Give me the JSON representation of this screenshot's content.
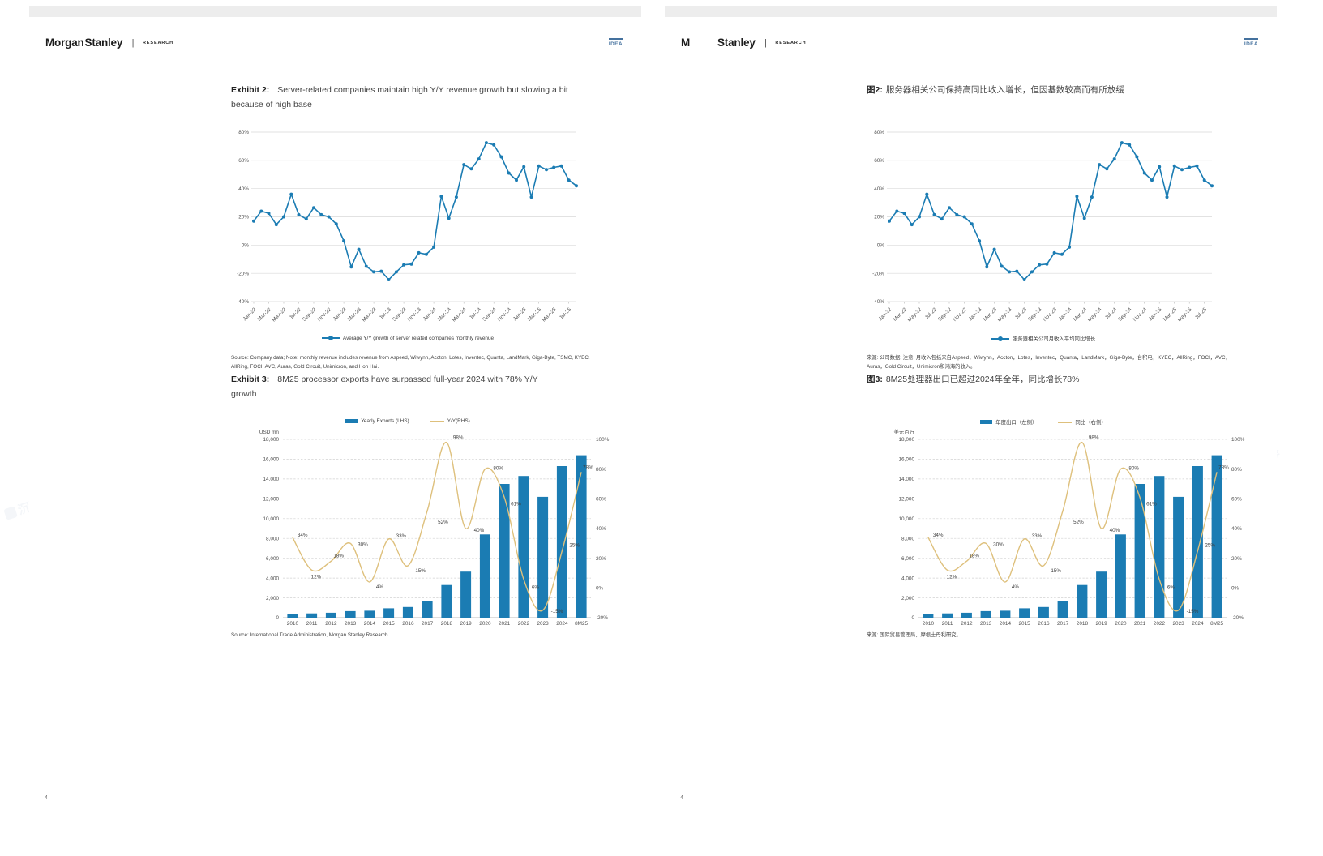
{
  "watermark": {
    "text": "沉浸式翻译"
  },
  "colors": {
    "chart_blue": "#1b7cb3",
    "yy_line_tan": "#dec07c",
    "idea_blue": "#44719e"
  },
  "pages": [
    {
      "lang": "en",
      "brand": {
        "part1": "Morgan",
        "part2": "Stanley",
        "divider": "|",
        "research": "RESEARCH"
      },
      "idea": "IDEA",
      "page_number": "4",
      "exhibit2": {
        "label": "Exhibit 2:",
        "title": "Server-related companies maintain high Y/Y revenue growth but slowing a bit because of high base",
        "legend": "Average Y/Y growth of server related companies monthly revenue",
        "source": "Source: Company data; Note: monthly revenue includes revenue from Aspeed, Wiwynn, Accton, Lotes, Inventec, Quanta, LandMark, Giga-Byte, TSMC, KYEC, AllRing, FOCI, AVC, Auras, Gold Circuit, Unimicron, and Hon Hai."
      },
      "exhibit3": {
        "label": "Exhibit 3:",
        "title": "8M25 processor exports have surpassed full-year 2024 with 78% Y/Y growth",
        "legend_bar": "Yearly Exports (LHS)",
        "legend_line": "Y/Y(RHS)",
        "axis_label": "USD mn",
        "source": "Source: International Trade Administration, Morgan Stanley Research."
      }
    },
    {
      "lang": "zh",
      "brand": {
        "part1": "M",
        "part2": "Stanley",
        "divider": "|",
        "research": "RESEARCH"
      },
      "idea": "IDEA",
      "page_number": "4",
      "exhibit2": {
        "label": "图2:",
        "title": "服务器相关公司保持高同比收入增长，但因基数较高而有所放缓",
        "legend": "服务器相关公司月收入平均同比增长",
        "source": "来源: 公司数据; 注意: 月收入包括来自Aspeed，Wiwynn，Accton，Lotes，Inventec，Quanta，LandMark，Giga-Byte，台积电，KYEC，AllRing，FOCI，AVC，Auras，Gold Circuit，Unimicron和鸿海的收入。"
      },
      "exhibit3": {
        "label": "图3:",
        "title": "8M25处理器出口已超过2024年全年，同比增长78%",
        "legend_bar": "年度出口（左侧）",
        "legend_line": "同比（右侧）",
        "axis_label": "美元百万",
        "source": "来源: 国际贸易管理局，摩根士丹利研究。"
      }
    }
  ],
  "chart_data": [
    {
      "type": "line",
      "title": "Average Y/Y growth of server related companies monthly revenue",
      "x": [
        "Jan-22",
        "Feb-22",
        "Mar-22",
        "Apr-22",
        "May-22",
        "Jun-22",
        "Jul-22",
        "Aug-22",
        "Sep-22",
        "Oct-22",
        "Nov-22",
        "Dec-22",
        "Jan-23",
        "Feb-23",
        "Mar-23",
        "Apr-23",
        "May-23",
        "Jun-23",
        "Jul-23",
        "Aug-23",
        "Sep-23",
        "Oct-23",
        "Nov-23",
        "Dec-23",
        "Jan-24",
        "Feb-24",
        "Mar-24",
        "Apr-24",
        "May-24",
        "Jun-24",
        "Jul-24",
        "Aug-24",
        "Sep-24",
        "Oct-24",
        "Nov-24",
        "Dec-24",
        "Jan-25",
        "Feb-25",
        "Mar-25",
        "Apr-25",
        "May-25",
        "Jun-25",
        "Jul-25",
        "Aug-25"
      ],
      "values": [
        17,
        24,
        22.5,
        14.5,
        20,
        36,
        21.5,
        18.5,
        26.5,
        21.5,
        20,
        15,
        3,
        -15.5,
        -3,
        -15,
        -19,
        -18.5,
        -24.5,
        -19,
        -14,
        -13.5,
        -5.5,
        -6.5,
        -1.5,
        34.5,
        19,
        34,
        57,
        54,
        61,
        72.5,
        71,
        62.5,
        51,
        46,
        55.5,
        34,
        56,
        53.5,
        55,
        56,
        46,
        42
      ],
      "ylim": [
        -40,
        80
      ],
      "yticks": [
        -40,
        -20,
        0,
        20,
        40,
        60,
        80
      ],
      "ytick_format": "percent",
      "xticks_shown_every": 2,
      "grid": true,
      "legend_position": "bottom",
      "color": "#1b7cb3"
    },
    {
      "type": "bar+line",
      "title": "8M25 processor exports vs full-year history",
      "categories": [
        "2010",
        "2011",
        "2012",
        "2013",
        "2014",
        "2015",
        "2016",
        "2017",
        "2018",
        "2019",
        "2020",
        "2021",
        "2022",
        "2023",
        "2024",
        "8M25"
      ],
      "series": [
        {
          "name": "Yearly Exports (LHS)",
          "type": "bar",
          "axis": "left",
          "color": "#1b7cb3",
          "values": [
            380,
            430,
            500,
            660,
            700,
            950,
            1080,
            1650,
            3300,
            4650,
            8400,
            13500,
            14300,
            12200,
            15300,
            16400
          ]
        },
        {
          "name": "Y/Y (RHS)",
          "type": "line",
          "axis": "right",
          "color": "#dec07c",
          "values": [
            34,
            12,
            18,
            30,
            4,
            33,
            15,
            52,
            98,
            40,
            80,
            61,
            6,
            -15,
            25,
            78
          ],
          "point_labels": [
            "34%",
            "12%",
            "18%",
            "30%",
            "4%",
            "33%",
            "15%",
            "52%",
            "98%",
            "40%",
            "80%",
            "61%",
            "6%",
            "-15%",
            "25%",
            "78%"
          ]
        }
      ],
      "ylim_left": [
        0,
        18000
      ],
      "ytick_step_left": 2000,
      "ylim_right": [
        -20,
        100
      ],
      "ytick_step_right": 20,
      "grid": "dashed",
      "legend_position": "top"
    }
  ]
}
